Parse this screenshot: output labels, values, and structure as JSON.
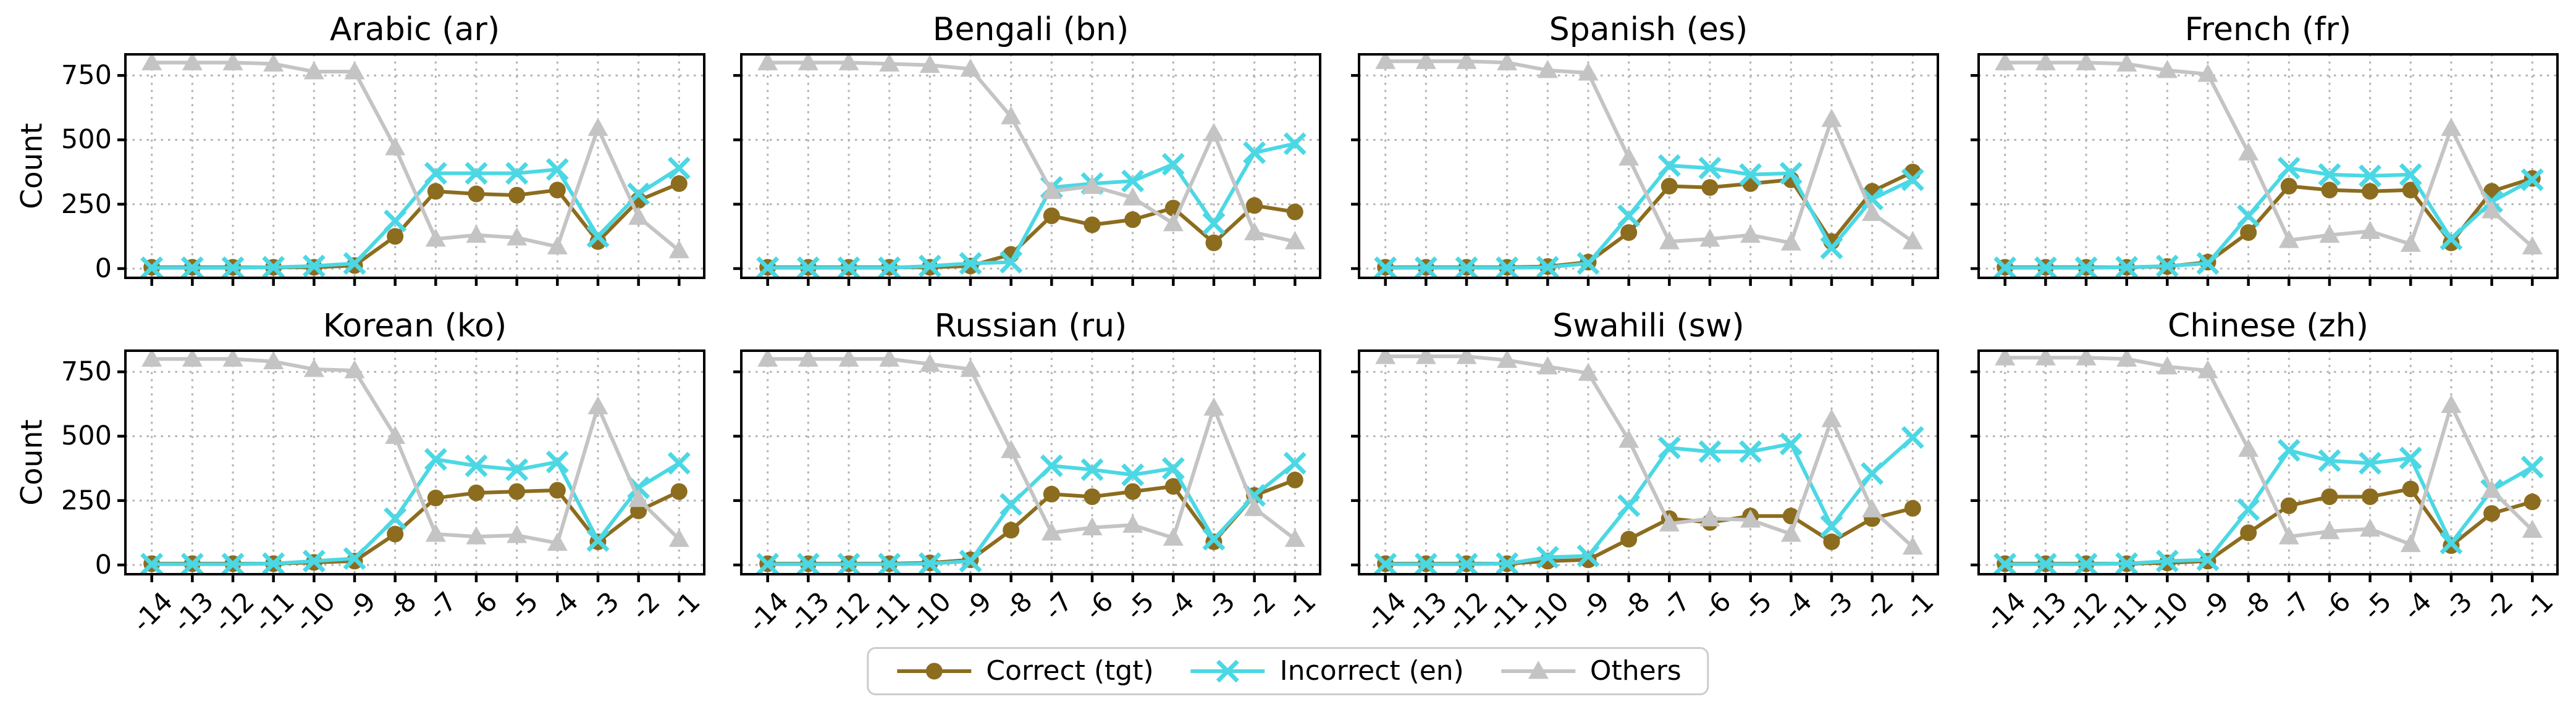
{
  "figure": {
    "background": "#ffffff"
  },
  "axes": {
    "ylabel": "Count",
    "yticks": [
      0,
      250,
      500,
      750
    ],
    "xticks": [
      -14,
      -13,
      -12,
      -11,
      -10,
      -9,
      -8,
      -7,
      -6,
      -5,
      -4,
      -3,
      -2,
      -1
    ],
    "ylim": [
      -36,
      832
    ],
    "grid": true,
    "grid_style": "dotted"
  },
  "colors": {
    "correct": "#8c6c1e",
    "incorrect": "#4bd8e4",
    "others": "#c4c4c4",
    "grid": "#b4b4b4",
    "spine": "#000000"
  },
  "legend": {
    "items": [
      {
        "label": "Correct (tgt)",
        "series": "correct",
        "marker": "circle"
      },
      {
        "label": "Incorrect (en)",
        "series": "incorrect",
        "marker": "x"
      },
      {
        "label": "Others",
        "series": "others",
        "marker": "triangle"
      }
    ]
  },
  "chart_data": [
    {
      "type": "line",
      "title": "Arabic (ar)",
      "x": [
        -14,
        -13,
        -12,
        -11,
        -10,
        -9,
        -8,
        -7,
        -6,
        -5,
        -4,
        -3,
        -2,
        -1
      ],
      "series": [
        {
          "name": "Correct (tgt)",
          "marker": "circle",
          "color_key": "correct",
          "values": [
            5,
            5,
            5,
            5,
            5,
            12,
            125,
            300,
            290,
            285,
            305,
            105,
            265,
            330
          ]
        },
        {
          "name": "Incorrect (en)",
          "marker": "x",
          "color_key": "incorrect",
          "values": [
            3,
            3,
            3,
            5,
            10,
            20,
            185,
            370,
            370,
            370,
            385,
            125,
            290,
            390
          ]
        },
        {
          "name": "Others",
          "marker": "triangle",
          "color_key": "others",
          "values": [
            800,
            800,
            800,
            795,
            765,
            765,
            470,
            115,
            130,
            120,
            85,
            545,
            200,
            70
          ]
        }
      ]
    },
    {
      "type": "line",
      "title": "Bengali (bn)",
      "x": [
        -14,
        -13,
        -12,
        -11,
        -10,
        -9,
        -8,
        -7,
        -6,
        -5,
        -4,
        -3,
        -2,
        -1
      ],
      "series": [
        {
          "name": "Correct (tgt)",
          "marker": "circle",
          "color_key": "correct",
          "values": [
            5,
            5,
            5,
            5,
            5,
            10,
            55,
            205,
            170,
            190,
            235,
            100,
            245,
            220
          ]
        },
        {
          "name": "Incorrect (en)",
          "marker": "x",
          "color_key": "incorrect",
          "values": [
            3,
            3,
            3,
            3,
            10,
            20,
            25,
            315,
            330,
            340,
            405,
            175,
            450,
            485
          ]
        },
        {
          "name": "Others",
          "marker": "triangle",
          "color_key": "others",
          "values": [
            800,
            800,
            800,
            795,
            790,
            775,
            590,
            300,
            320,
            275,
            175,
            525,
            140,
            105
          ]
        }
      ]
    },
    {
      "type": "line",
      "title": "Spanish (es)",
      "x": [
        -14,
        -13,
        -12,
        -11,
        -10,
        -9,
        -8,
        -7,
        -6,
        -5,
        -4,
        -3,
        -2,
        -1
      ],
      "series": [
        {
          "name": "Correct (tgt)",
          "marker": "circle",
          "color_key": "correct",
          "values": [
            5,
            5,
            5,
            5,
            8,
            25,
            140,
            320,
            315,
            330,
            345,
            105,
            300,
            375
          ]
        },
        {
          "name": "Incorrect (en)",
          "marker": "x",
          "color_key": "incorrect",
          "values": [
            3,
            3,
            3,
            3,
            5,
            20,
            205,
            400,
            390,
            365,
            370,
            80,
            270,
            345
          ]
        },
        {
          "name": "Others",
          "marker": "triangle",
          "color_key": "others",
          "values": [
            805,
            805,
            805,
            800,
            770,
            760,
            430,
            105,
            115,
            130,
            100,
            580,
            215,
            105
          ]
        }
      ]
    },
    {
      "type": "line",
      "title": "French (fr)",
      "x": [
        -14,
        -13,
        -12,
        -11,
        -10,
        -9,
        -8,
        -7,
        -6,
        -5,
        -4,
        -3,
        -2,
        -1
      ],
      "series": [
        {
          "name": "Correct (tgt)",
          "marker": "circle",
          "color_key": "correct",
          "values": [
            5,
            5,
            5,
            5,
            8,
            25,
            140,
            320,
            305,
            300,
            305,
            100,
            300,
            350
          ]
        },
        {
          "name": "Incorrect (en)",
          "marker": "x",
          "color_key": "incorrect",
          "values": [
            3,
            3,
            3,
            5,
            10,
            20,
            205,
            390,
            365,
            360,
            365,
            115,
            260,
            345
          ]
        },
        {
          "name": "Others",
          "marker": "triangle",
          "color_key": "others",
          "values": [
            800,
            800,
            800,
            795,
            770,
            755,
            450,
            110,
            130,
            145,
            95,
            545,
            225,
            85
          ]
        }
      ]
    },
    {
      "type": "line",
      "title": "Korean (ko)",
      "x": [
        -14,
        -13,
        -12,
        -11,
        -10,
        -9,
        -8,
        -7,
        -6,
        -5,
        -4,
        -3,
        -2,
        -1
      ],
      "series": [
        {
          "name": "Correct (tgt)",
          "marker": "circle",
          "color_key": "correct",
          "values": [
            5,
            5,
            5,
            5,
            10,
            15,
            120,
            260,
            280,
            285,
            290,
            90,
            210,
            285
          ]
        },
        {
          "name": "Incorrect (en)",
          "marker": "x",
          "color_key": "incorrect",
          "values": [
            3,
            3,
            3,
            5,
            15,
            25,
            180,
            410,
            385,
            370,
            400,
            95,
            300,
            395
          ]
        },
        {
          "name": "Others",
          "marker": "triangle",
          "color_key": "others",
          "values": [
            800,
            800,
            800,
            790,
            760,
            755,
            500,
            120,
            110,
            115,
            85,
            615,
            255,
            100
          ]
        }
      ]
    },
    {
      "type": "line",
      "title": "Russian (ru)",
      "x": [
        -14,
        -13,
        -12,
        -11,
        -10,
        -9,
        -8,
        -7,
        -6,
        -5,
        -4,
        -3,
        -2,
        -1
      ],
      "series": [
        {
          "name": "Correct (tgt)",
          "marker": "circle",
          "color_key": "correct",
          "values": [
            5,
            5,
            5,
            5,
            8,
            20,
            135,
            275,
            265,
            285,
            305,
            90,
            270,
            330
          ]
        },
        {
          "name": "Incorrect (en)",
          "marker": "x",
          "color_key": "incorrect",
          "values": [
            3,
            3,
            3,
            3,
            5,
            15,
            235,
            385,
            370,
            350,
            375,
            100,
            270,
            395
          ]
        },
        {
          "name": "Others",
          "marker": "triangle",
          "color_key": "others",
          "values": [
            800,
            800,
            800,
            800,
            780,
            760,
            445,
            125,
            145,
            155,
            105,
            610,
            220,
            100
          ]
        }
      ]
    },
    {
      "type": "line",
      "title": "Swahili (sw)",
      "x": [
        -14,
        -13,
        -12,
        -11,
        -10,
        -9,
        -8,
        -7,
        -6,
        -5,
        -4,
        -3,
        -2,
        -1
      ],
      "series": [
        {
          "name": "Correct (tgt)",
          "marker": "circle",
          "color_key": "correct",
          "values": [
            5,
            5,
            5,
            5,
            15,
            20,
            100,
            180,
            165,
            190,
            190,
            90,
            180,
            220
          ]
        },
        {
          "name": "Incorrect (en)",
          "marker": "x",
          "color_key": "incorrect",
          "values": [
            3,
            3,
            3,
            5,
            30,
            35,
            230,
            455,
            440,
            440,
            470,
            150,
            355,
            495
          ]
        },
        {
          "name": "Others",
          "marker": "triangle",
          "color_key": "others",
          "values": [
            810,
            810,
            810,
            795,
            770,
            745,
            485,
            160,
            180,
            175,
            120,
            565,
            215,
            70
          ]
        }
      ]
    },
    {
      "type": "line",
      "title": "Chinese (zh)",
      "x": [
        -14,
        -13,
        -12,
        -11,
        -10,
        -9,
        -8,
        -7,
        -6,
        -5,
        -4,
        -3,
        -2,
        -1
      ],
      "series": [
        {
          "name": "Correct (tgt)",
          "marker": "circle",
          "color_key": "correct",
          "values": [
            5,
            5,
            5,
            5,
            8,
            15,
            125,
            230,
            265,
            265,
            295,
            75,
            200,
            245
          ]
        },
        {
          "name": "Incorrect (en)",
          "marker": "x",
          "color_key": "incorrect",
          "values": [
            3,
            3,
            3,
            5,
            15,
            20,
            215,
            445,
            405,
            395,
            415,
            85,
            290,
            380
          ]
        },
        {
          "name": "Others",
          "marker": "triangle",
          "color_key": "others",
          "values": [
            805,
            805,
            805,
            800,
            770,
            755,
            450,
            110,
            130,
            140,
            80,
            620,
            290,
            135
          ]
        }
      ]
    }
  ]
}
